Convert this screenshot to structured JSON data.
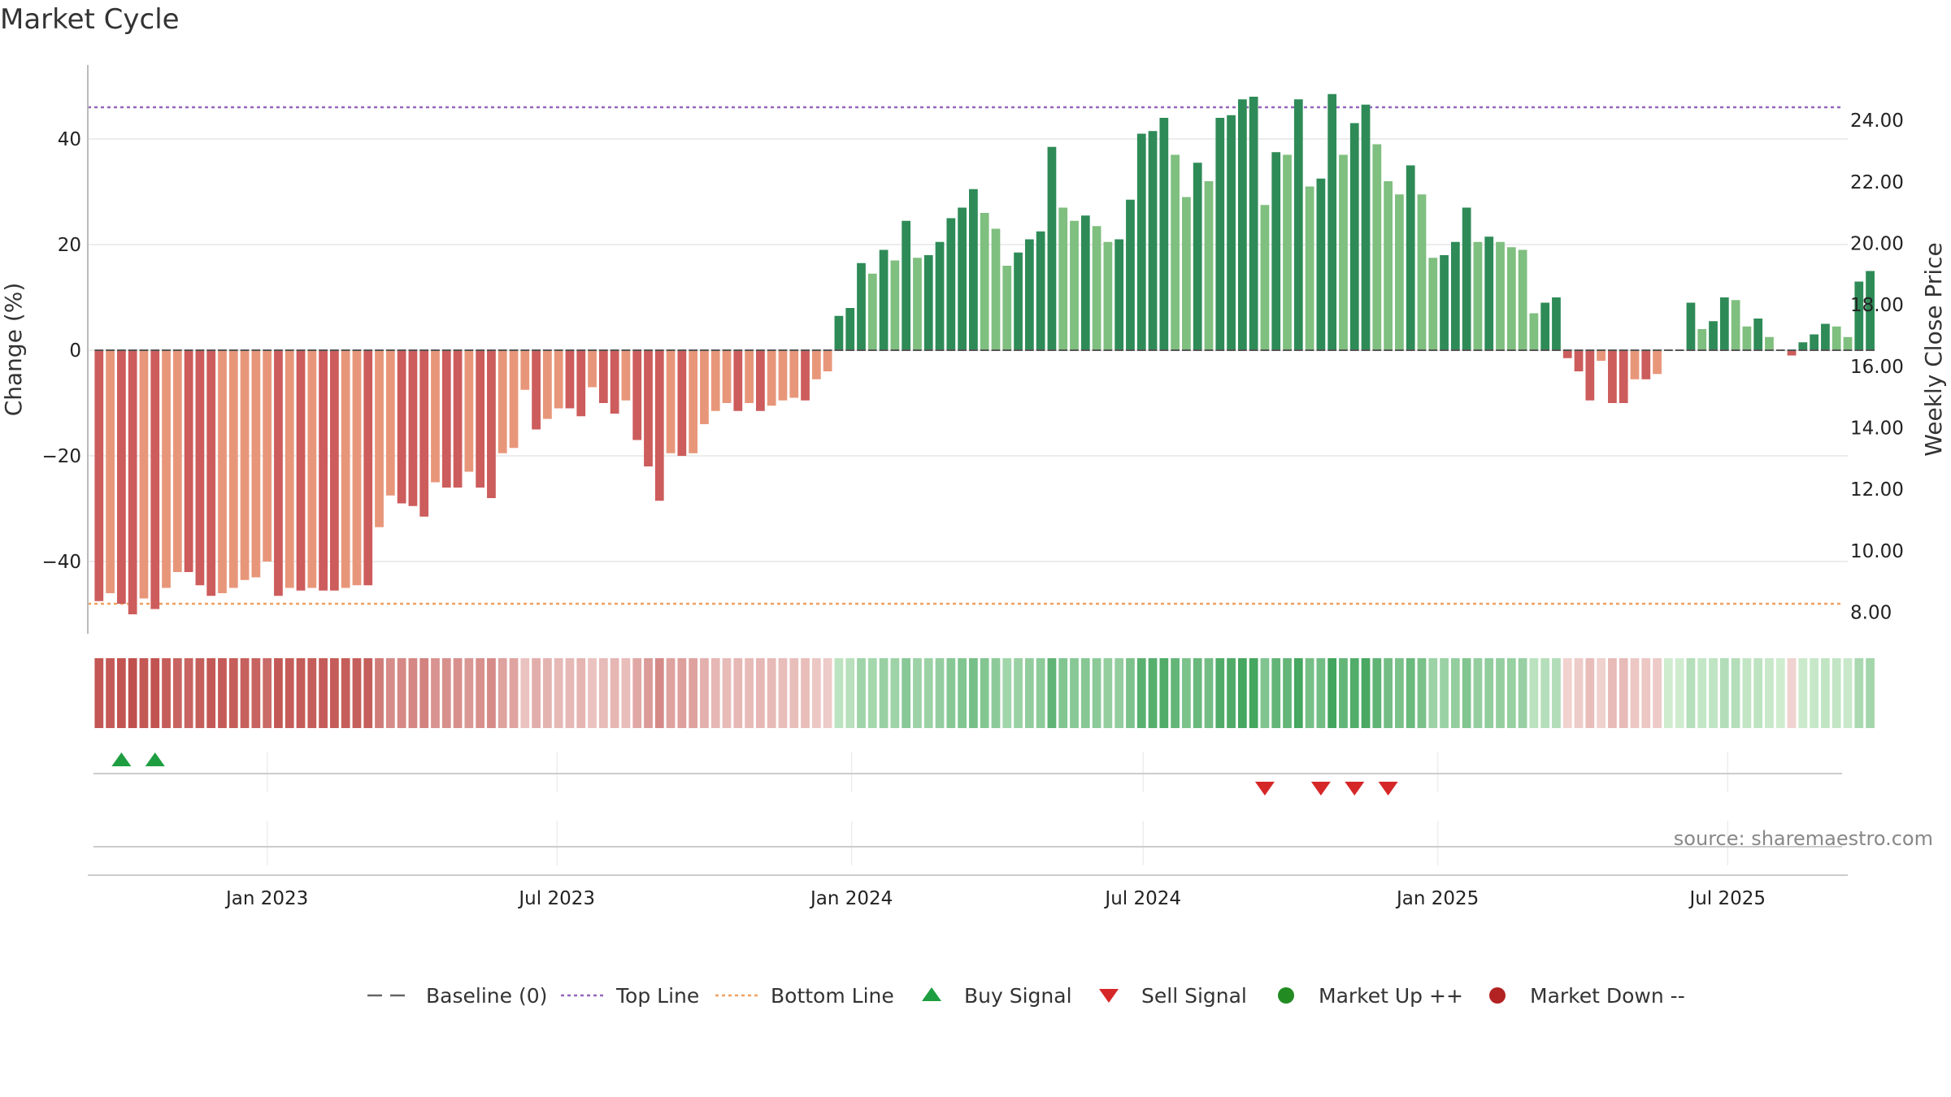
{
  "chart_data": {
    "title": "Market Cycle",
    "type": "bar",
    "ylabel_left": "Change (%)",
    "ylabel_right": "Weekly Close Price",
    "ylim_left": [
      -54,
      54
    ],
    "ylim_right": [
      7.3,
      25.8
    ],
    "yticks_left": [
      -40,
      -20,
      0,
      20,
      40
    ],
    "yticks_right": [
      "8.00",
      "10.00",
      "12.00",
      "14.00",
      "16.00",
      "18.00",
      "20.00",
      "22.00",
      "24.00"
    ],
    "x_date_range": [
      "2022-09-11",
      "2025-09-14"
    ],
    "xticks": [
      {
        "date": "2023-01-01",
        "label": "Jan 2023"
      },
      {
        "date": "2023-07-01",
        "label": "Jul 2023"
      },
      {
        "date": "2024-01-01",
        "label": "Jan 2024"
      },
      {
        "date": "2024-07-01",
        "label": "Jul 2024"
      },
      {
        "date": "2025-01-01",
        "label": "Jan 2025"
      },
      {
        "date": "2025-07-01",
        "label": "Jul 2025"
      }
    ],
    "start_date": "2022-09-18",
    "week_step_days": 7,
    "top_line": 46,
    "bottom_line": -48,
    "values": [
      -47.5,
      -46,
      -48,
      -50,
      -47,
      -49,
      -45,
      -42,
      -42,
      -44.5,
      -46.5,
      -46,
      -45,
      -43.5,
      -43,
      -40,
      -46.5,
      -45,
      -45.5,
      -45,
      -45.5,
      -45.5,
      -45,
      -44.5,
      -44.5,
      -33.5,
      -27.5,
      -29,
      -29.5,
      -31.5,
      -25,
      -26,
      -26,
      -23,
      -26,
      -28,
      -19.5,
      -18.5,
      -7.5,
      -15,
      -13,
      -11,
      -11,
      -12.5,
      -7,
      -10,
      -12,
      -9.5,
      -17,
      -22,
      -28.5,
      -19.5,
      -20,
      -19.5,
      -14,
      -11.5,
      -10,
      -11.5,
      -10,
      -11.5,
      -10.5,
      -9.5,
      -9,
      -9.5,
      -5.5,
      -4,
      6.5,
      8,
      16.5,
      14.5,
      19,
      17,
      24.5,
      17.5,
      18,
      20.5,
      25,
      27,
      30.5,
      26,
      23,
      16,
      18.5,
      21,
      22.5,
      38.5,
      27,
      24.5,
      25.5,
      23.5,
      20.5,
      21,
      28.5,
      41,
      41.5,
      44,
      37,
      29,
      35.5,
      32,
      44,
      44.5,
      47.5,
      48,
      27.5,
      37.5,
      37,
      47.5,
      31,
      32.5,
      48.5,
      37,
      43,
      46.5,
      39,
      32,
      29.5,
      35,
      29.5,
      17.5,
      18,
      20.5,
      27,
      20.5,
      21.5,
      20.5,
      19.5,
      19,
      7,
      9,
      10,
      -1.5,
      -4,
      -9.5,
      -2,
      -10,
      -10,
      -5.5,
      -5.5,
      -4.5,
      0,
      0,
      9,
      4,
      5.5,
      10,
      9.5,
      4.5,
      6,
      2.5,
      0,
      -1,
      1.5,
      3,
      5,
      4.5,
      2.5,
      13,
      15
    ],
    "bar_colors": {
      "neg_dark": "#cd5c5c",
      "neg_light": "#e8967a",
      "pos_dark": "#2e8b57",
      "pos_light": "#7fbf7f",
      "baseline_tick": "#555555"
    },
    "heat_stops": {
      "neg_strong": "#c0504d",
      "neg_weak": "#f1d6d3",
      "pos_weak": "#cfeccf",
      "pos_strong": "#3fa35a"
    },
    "buy_signals": [
      "2022-10-02",
      "2022-10-23"
    ],
    "sell_signals": [
      "2024-09-15",
      "2024-10-20",
      "2024-11-10",
      "2024-12-01"
    ],
    "legend": [
      {
        "label": "Baseline (0)",
        "symbol": "dashed-line",
        "color": "#666666"
      },
      {
        "label": "Top Line",
        "symbol": "dotted-line",
        "color": "#9467bd"
      },
      {
        "label": "Bottom Line",
        "symbol": "dotted-line",
        "color": "#f0a060"
      },
      {
        "label": "Buy Signal",
        "symbol": "triangle-up",
        "color": "#1e9e40"
      },
      {
        "label": "Sell Signal",
        "symbol": "triangle-down",
        "color": "#d62728"
      },
      {
        "label": "Market Up ++",
        "symbol": "circle",
        "color": "#228b22"
      },
      {
        "label": "Market Down --",
        "symbol": "circle",
        "color": "#b22222"
      }
    ],
    "source": "source: sharemaestro.com"
  }
}
